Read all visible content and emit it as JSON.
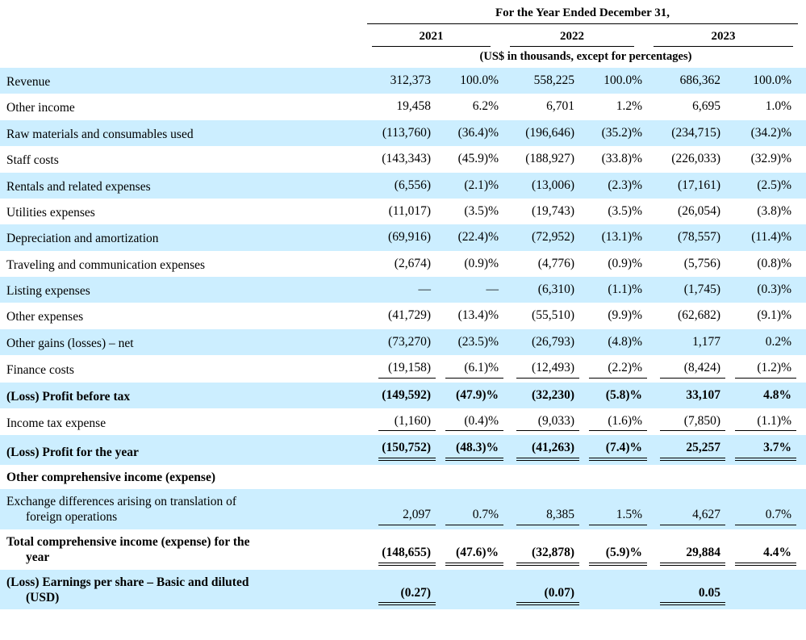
{
  "colors": {
    "row_highlight": "#cceeff",
    "text": "#000000",
    "rule": "#000000"
  },
  "table": {
    "header": {
      "title": "For the Year Ended December 31,",
      "years": [
        "2021",
        "2022",
        "2023"
      ],
      "subtitle": "(US$ in thousands, except for percentages)"
    },
    "rows": [
      {
        "label": "Revenue",
        "cells": [
          "312,373",
          "100.0%",
          "558,225",
          "100.0%",
          "686,362",
          "100.0%"
        ],
        "bold": false,
        "shade": true,
        "underline": "none"
      },
      {
        "label": "Other income",
        "cells": [
          "19,458",
          "6.2%",
          "6,701",
          "1.2%",
          "6,695",
          "1.0%"
        ],
        "bold": false,
        "shade": false,
        "underline": "none"
      },
      {
        "label": "Raw materials and consumables used",
        "cells": [
          "(113,760)",
          "(36.4)%",
          "(196,646)",
          "(35.2)%",
          "(234,715)",
          "(34.2)%"
        ],
        "bold": false,
        "shade": true,
        "underline": "none"
      },
      {
        "label": "Staff costs",
        "cells": [
          "(143,343)",
          "(45.9)%",
          "(188,927)",
          "(33.8)%",
          "(226,033)",
          "(32.9)%"
        ],
        "bold": false,
        "shade": false,
        "underline": "none"
      },
      {
        "label": "Rentals and related expenses",
        "cells": [
          "(6,556)",
          "(2.1)%",
          "(13,006)",
          "(2.3)%",
          "(17,161)",
          "(2.5)%"
        ],
        "bold": false,
        "shade": true,
        "underline": "none"
      },
      {
        "label": "Utilities expenses",
        "cells": [
          "(11,017)",
          "(3.5)%",
          "(19,743)",
          "(3.5)%",
          "(26,054)",
          "(3.8)%"
        ],
        "bold": false,
        "shade": false,
        "underline": "none"
      },
      {
        "label": "Depreciation and amortization",
        "cells": [
          "(69,916)",
          "(22.4)%",
          "(72,952)",
          "(13.1)%",
          "(78,557)",
          "(11.4)%"
        ],
        "bold": false,
        "shade": true,
        "underline": "none"
      },
      {
        "label": "Traveling and communication expenses",
        "cells": [
          "(2,674)",
          "(0.9)%",
          "(4,776)",
          "(0.9)%",
          "(5,756)",
          "(0.8)%"
        ],
        "bold": false,
        "shade": false,
        "underline": "none"
      },
      {
        "label": "Listing expenses",
        "cells": [
          "—",
          "—",
          "(6,310)",
          "(1.1)%",
          "(1,745)",
          "(0.3)%"
        ],
        "bold": false,
        "shade": true,
        "underline": "none"
      },
      {
        "label": "Other expenses",
        "cells": [
          "(41,729)",
          "(13.4)%",
          "(55,510)",
          "(9.9)%",
          "(62,682)",
          "(9.1)%"
        ],
        "bold": false,
        "shade": false,
        "underline": "none"
      },
      {
        "label": "Other gains (losses) – net",
        "cells": [
          "(73,270)",
          "(23.5)%",
          "(26,793)",
          "(4.8)%",
          "1,177",
          "0.2%"
        ],
        "bold": false,
        "shade": true,
        "underline": "none"
      },
      {
        "label": "Finance costs",
        "cells": [
          "(19,158)",
          "(6.1)%",
          "(12,493)",
          "(2.2)%",
          "(8,424)",
          "(1.2)%"
        ],
        "bold": false,
        "shade": false,
        "underline": "single"
      },
      {
        "label": "(Loss) Profit before tax",
        "cells": [
          "(149,592)",
          "(47.9)%",
          "(32,230)",
          "(5.8)%",
          "33,107",
          "4.8%"
        ],
        "bold": true,
        "shade": true,
        "underline": "none"
      },
      {
        "label": "Income tax expense",
        "cells": [
          "(1,160)",
          "(0.4)%",
          "(9,033)",
          "(1.6)%",
          "(7,850)",
          "(1.1)%"
        ],
        "bold": false,
        "shade": false,
        "underline": "single"
      },
      {
        "label": "(Loss) Profit for the year",
        "cells": [
          "(150,752)",
          "(48.3)%",
          "(41,263)",
          "(7.4)%",
          "25,257",
          "3.7%"
        ],
        "bold": true,
        "shade": true,
        "underline": "double"
      },
      {
        "label": "Other comprehensive income (expense)",
        "cells": [
          "",
          "",
          "",
          "",
          "",
          ""
        ],
        "bold": true,
        "shade": false,
        "underline": "none"
      },
      {
        "label": "Exchange differences arising on translation of\nforeign operations",
        "cells": [
          "2,097",
          "0.7%",
          "8,385",
          "1.5%",
          "4,627",
          "0.7%"
        ],
        "bold": false,
        "shade": true,
        "underline": "single"
      },
      {
        "label": "Total comprehensive income (expense) for the\nyear",
        "cells": [
          "(148,655)",
          "(47.6)%",
          "(32,878)",
          "(5.9)%",
          "29,884",
          "4.4%"
        ],
        "bold": true,
        "shade": false,
        "underline": "double"
      },
      {
        "label": "(Loss) Earnings per share – Basic and diluted\n(USD)",
        "cells": [
          "(0.27)",
          "",
          "(0.07)",
          "",
          "0.05",
          ""
        ],
        "bold": true,
        "shade": true,
        "underline": "double"
      }
    ]
  }
}
